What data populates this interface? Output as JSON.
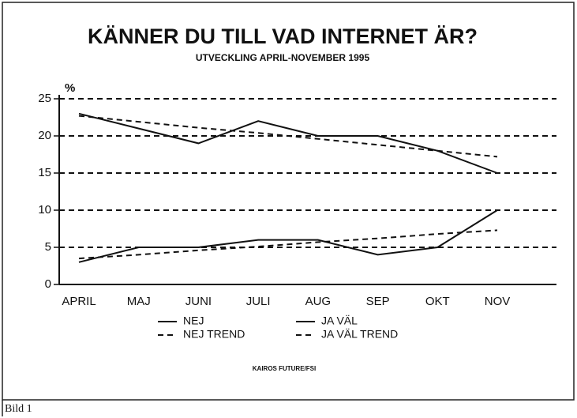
{
  "chart_data": {
    "type": "line",
    "title": "KÄNNER DU TILL VAD INTERNET ÄR?",
    "subtitle": "UTVECKLING APRIL-NOVEMBER 1995",
    "y_label": "%",
    "source": "KAIROS FUTURE/FSI",
    "caption": "Bild 1",
    "categories": [
      "APRIL",
      "MAJ",
      "JUNI",
      "JULI",
      "AUG",
      "SEP",
      "OKT",
      "NOV"
    ],
    "series": [
      {
        "name": "NEJ",
        "color": "#111111",
        "style": "solid",
        "values": [
          23,
          21,
          19,
          22,
          20,
          20,
          18,
          15
        ]
      },
      {
        "name": "JA VÄL",
        "color": "#111111",
        "style": "solid",
        "values": [
          3,
          5,
          5,
          6,
          6,
          4,
          5,
          10
        ]
      },
      {
        "name": "NEJ TREND",
        "color": "#111111",
        "style": "dashed",
        "values": [
          22.7,
          21.9,
          21.1,
          20.4,
          19.6,
          18.8,
          18.0,
          17.2
        ]
      },
      {
        "name": "JA VÄL TREND",
        "color": "#111111",
        "style": "dashed",
        "values": [
          3.5,
          4.0,
          4.6,
          5.1,
          5.7,
          6.2,
          6.8,
          7.3
        ]
      }
    ],
    "ylim": [
      0,
      25
    ],
    "yticks": [
      0,
      5,
      10,
      15,
      20,
      25
    ],
    "grid": true,
    "grid_style": "dashed"
  }
}
